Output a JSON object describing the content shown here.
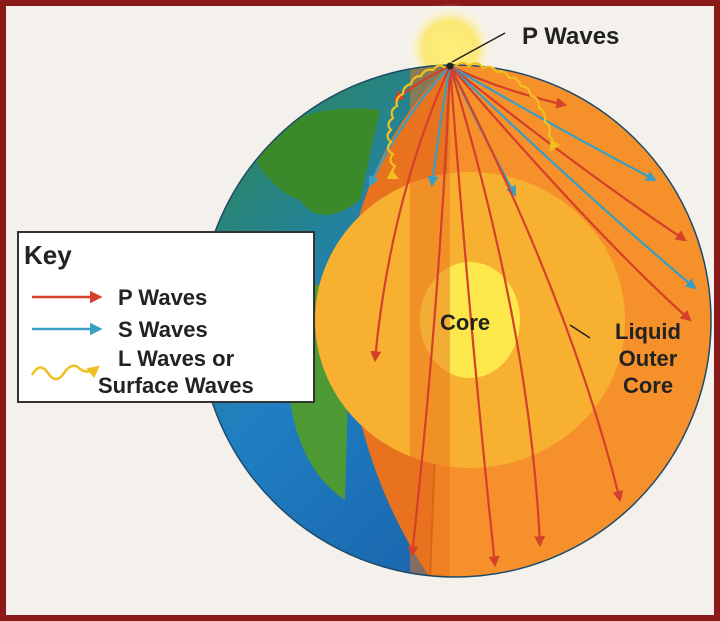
{
  "labels": {
    "focus": "P Waves",
    "core": "Core",
    "outer_core": [
      "Liquid",
      "Outer",
      "Core"
    ]
  },
  "key": {
    "title": "Key",
    "items": [
      {
        "lines": [
          "P Waves"
        ]
      },
      {
        "lines": [
          "S Waves"
        ]
      },
      {
        "lines": [
          "L Waves or",
          "Surface Waves"
        ]
      }
    ]
  }
}
